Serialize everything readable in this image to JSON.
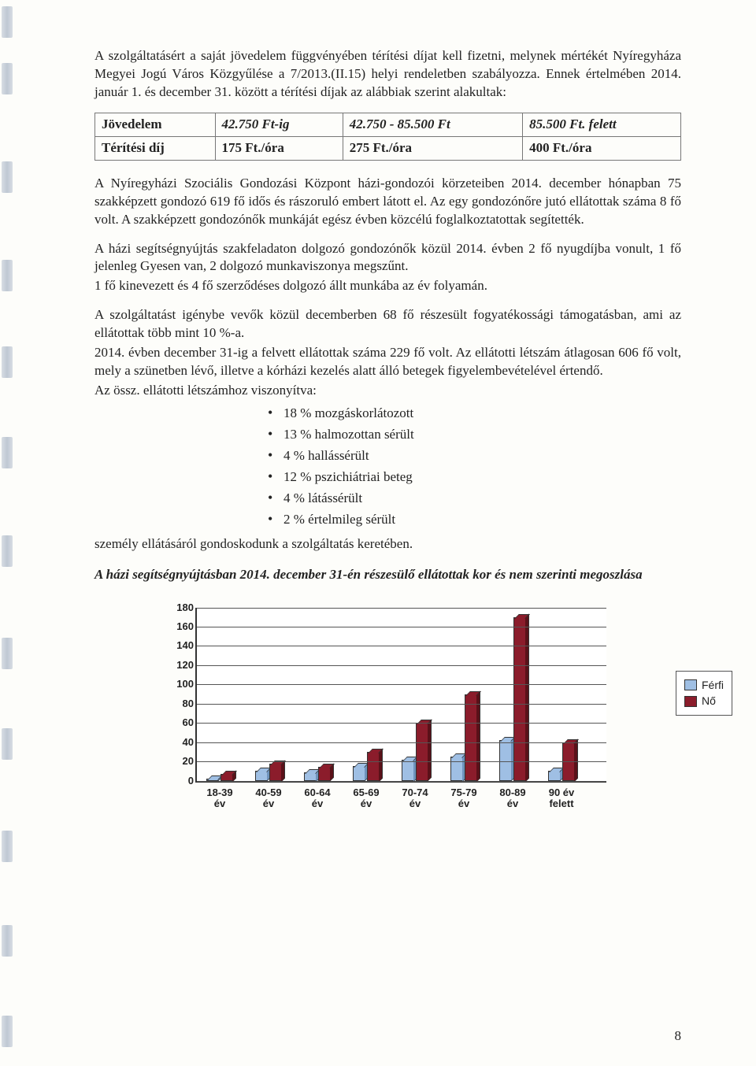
{
  "para1": "A szolgáltatásért a saját jövedelem függvényében térítési díjat kell fizetni, melynek mértékét Nyíregyháza Megyei Jogú Város Közgyűlése a 7/2013.(II.15) helyi rendeletben szabályozza. Ennek értelmében 2014. január 1. és december 31. között a térítési díjak az alábbiak szerint alakultak:",
  "table": {
    "row1": {
      "c0": "Jövedelem",
      "c1": "42.750 Ft-ig",
      "c2": "42.750 - 85.500 Ft",
      "c3": "85.500 Ft. felett"
    },
    "row2": {
      "c0": "Térítési díj",
      "c1": "175 Ft./óra",
      "c2": "275 Ft./óra",
      "c3": "400 Ft./óra"
    }
  },
  "para2": "A Nyíregyházi Szociális Gondozási Központ házi-gondozói körzeteiben 2014. december hónapban 75 szakképzett gondozó 619 fő idős és rászoruló embert látott el. Az egy gondozónőre jutó ellátottak száma 8 fő volt. A szakképzett gondozónők munkáját egész évben közcélú foglalkoztatottak segítették.",
  "para3": "A házi segítségnyújtás szakfeladaton dolgozó gondozónők közül 2014. évben 2 fő nyugdíjba vonult, 1 fő jelenleg Gyesen van, 2 dolgozó munkaviszonya megszűnt.",
  "para4": "1 fő kinevezett és 4 fő szerződéses dolgozó állt munkába az év folyamán.",
  "para5": "A szolgáltatást igénybe vevők közül decemberben 68 fő részesült fogyatékossági támogatásban, ami az ellátottak több mint 10 %-a.",
  "para6": "2014. évben december 31-ig a felvett ellátottak száma 229 fő volt. Az ellátotti létszám átlagosan 606 fő volt, mely a szünetben lévő, illetve a kórházi kezelés alatt álló betegek figyelembevételével értendő.",
  "para7": "Az össz. ellátotti létszámhoz viszonyítva:",
  "bullets": {
    "b1": "18 % mozgáskorlátozott",
    "b2": "13 % halmozottan sérült",
    "b3": "4 % hallássérült",
    "b4": "12 % pszichiátriai beteg",
    "b5": "4 % látássérült",
    "b6": "2 % értelmileg sérült"
  },
  "para8": "személy ellátásáról gondoskodunk a szolgáltatás keretében.",
  "subheading": "A házi segítségnyújtásban 2014. december 31-én részesülő ellátottak kor és nem szerinti megoszlása",
  "chart": {
    "type": "bar",
    "ymax": 180,
    "yticks": [
      0,
      20,
      40,
      60,
      80,
      100,
      120,
      140,
      160,
      180
    ],
    "categories": [
      "18-39 év",
      "40-59 év",
      "60-64 év",
      "65-69 év",
      "70-74 év",
      "75-79 év",
      "80-89 év",
      "90 év felett"
    ],
    "series": [
      {
        "name": "Férfi",
        "color_fill": "#9fbfe4",
        "color_side": "#6f93bd",
        "values": [
          2,
          10,
          9,
          15,
          22,
          25,
          42,
          10
        ]
      },
      {
        "name": "Nő",
        "color_fill": "#8b1c2b",
        "color_side": "#5a1119",
        "values": [
          7,
          18,
          14,
          30,
          60,
          90,
          170,
          40
        ]
      }
    ],
    "grid_color": "#555555",
    "background": "#ffffff",
    "axis_font": "Arial"
  },
  "legend": {
    "male": "Férfi",
    "female": "Nő"
  },
  "pagenum": "8"
}
